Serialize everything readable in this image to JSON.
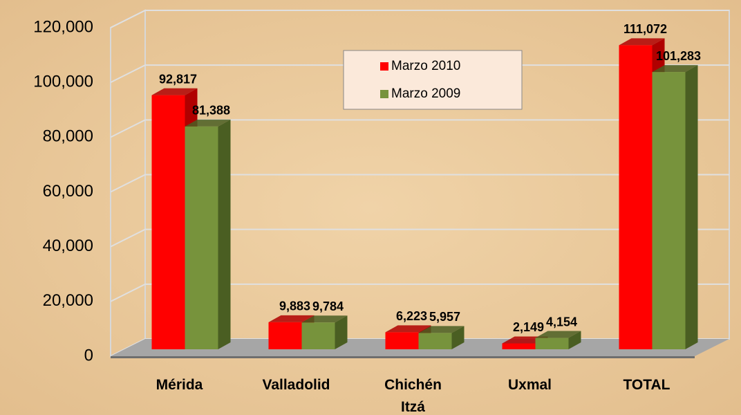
{
  "chart_data": {
    "type": "bar3d",
    "categories": [
      "Mérida",
      "Valladolid",
      "Chichén Itzá",
      "Uxmal",
      "TOTAL"
    ],
    "series": [
      {
        "name": "Marzo 2010",
        "color": "#ff0000",
        "side_color": "#b00000",
        "values": [
          92817,
          9883,
          6223,
          2149,
          111072
        ],
        "value_labels": [
          "92,817",
          "9,883",
          "6,223",
          "2,149",
          "111,072"
        ]
      },
      {
        "name": "Marzo 2009",
        "color": "#77933c",
        "side_color": "#4a5e22",
        "values": [
          81388,
          9784,
          5957,
          4154,
          101283
        ],
        "value_labels": [
          "81,388",
          "9,784",
          "5,957",
          "4,154",
          "101,283"
        ]
      }
    ],
    "ylim": [
      0,
      120000
    ],
    "yticks": [
      0,
      {
        "value": 20000,
        "label": "20,000"
      },
      {
        "value": 40000,
        "label": "40,000"
      },
      {
        "value": 60000,
        "label": "60,000"
      },
      {
        "value": 80000,
        "label": "80,000"
      },
      {
        "value": 100000,
        "label": "100,000"
      },
      {
        "value": 120000,
        "label": "120,000"
      }
    ],
    "grid": true,
    "legend": "top-center"
  }
}
